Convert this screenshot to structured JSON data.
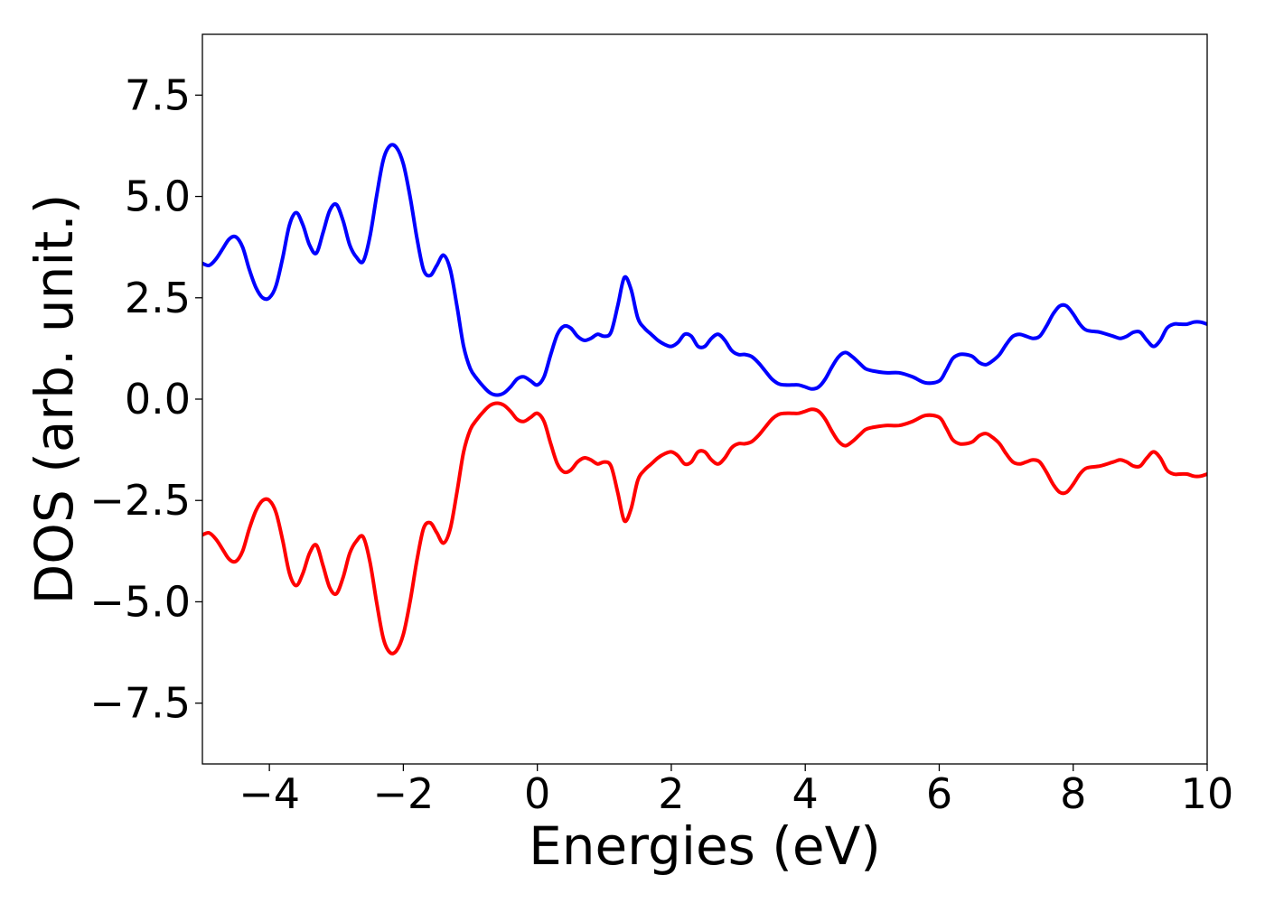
{
  "chart_data": {
    "type": "line",
    "title": "",
    "xlabel": "Energies (eV)",
    "ylabel": "DOS (arb. unit.)",
    "xlim": [
      -5,
      10
    ],
    "ylim": [
      -9,
      9
    ],
    "grid": false,
    "legend": "none",
    "xticks": [
      -4,
      -2,
      0,
      2,
      4,
      6,
      8,
      10
    ],
    "xtick_labels": [
      "−4",
      "−2",
      "0",
      "2",
      "4",
      "6",
      "8",
      "10"
    ],
    "yticks": [
      7.5,
      5.0,
      2.5,
      0.0,
      -2.5,
      -5.0,
      -7.5
    ],
    "ytick_labels": [
      "7.5",
      "5.0",
      "2.5",
      "0.0",
      "−2.5",
      "−5.0",
      "−7.5"
    ],
    "series": [
      {
        "color": "#0000ff",
        "x": [
          -5.0,
          -4.9,
          -4.8,
          -4.7,
          -4.6,
          -4.5,
          -4.4,
          -4.3,
          -4.2,
          -4.1,
          -4.0,
          -3.9,
          -3.8,
          -3.7,
          -3.6,
          -3.5,
          -3.4,
          -3.3,
          -3.2,
          -3.1,
          -3.0,
          -2.9,
          -2.8,
          -2.7,
          -2.6,
          -2.5,
          -2.4,
          -2.3,
          -2.2,
          -2.1,
          -2.0,
          -1.9,
          -1.8,
          -1.7,
          -1.6,
          -1.5,
          -1.4,
          -1.3,
          -1.2,
          -1.1,
          -1.0,
          -0.9,
          -0.8,
          -0.7,
          -0.6,
          -0.5,
          -0.4,
          -0.3,
          -0.2,
          -0.1,
          0.0,
          0.1,
          0.2,
          0.3,
          0.4,
          0.5,
          0.6,
          0.7,
          0.8,
          0.9,
          1.0,
          1.1,
          1.2,
          1.3,
          1.4,
          1.5,
          1.6,
          1.7,
          1.8,
          1.9,
          2.0,
          2.1,
          2.2,
          2.3,
          2.4,
          2.5,
          2.6,
          2.7,
          2.8,
          2.9,
          3.0,
          3.1,
          3.2,
          3.3,
          3.4,
          3.5,
          3.6,
          3.7,
          3.8,
          3.9,
          4.0,
          4.1,
          4.2,
          4.3,
          4.4,
          4.5,
          4.6,
          4.7,
          4.8,
          4.9,
          5.0,
          5.2,
          5.4,
          5.6,
          5.8,
          6.0,
          6.1,
          6.2,
          6.3,
          6.4,
          6.5,
          6.6,
          6.7,
          6.8,
          6.9,
          7.0,
          7.1,
          7.2,
          7.3,
          7.4,
          7.5,
          7.6,
          7.7,
          7.8,
          7.9,
          8.0,
          8.1,
          8.2,
          8.4,
          8.6,
          8.7,
          8.8,
          8.9,
          9.0,
          9.1,
          9.2,
          9.3,
          9.4,
          9.5,
          9.6,
          9.7,
          9.8,
          9.9,
          10.0
        ],
        "y": [
          3.35,
          3.3,
          3.45,
          3.7,
          3.95,
          4.0,
          3.75,
          3.2,
          2.75,
          2.5,
          2.5,
          2.8,
          3.5,
          4.3,
          4.6,
          4.3,
          3.8,
          3.6,
          4.1,
          4.65,
          4.8,
          4.4,
          3.8,
          3.5,
          3.4,
          4.0,
          5.0,
          5.9,
          6.25,
          6.2,
          5.8,
          5.0,
          4.0,
          3.2,
          3.05,
          3.3,
          3.55,
          3.2,
          2.3,
          1.3,
          0.75,
          0.5,
          0.3,
          0.15,
          0.1,
          0.15,
          0.3,
          0.5,
          0.55,
          0.45,
          0.35,
          0.55,
          1.1,
          1.6,
          1.8,
          1.75,
          1.55,
          1.45,
          1.5,
          1.6,
          1.55,
          1.65,
          2.3,
          3.0,
          2.7,
          2.0,
          1.75,
          1.6,
          1.45,
          1.35,
          1.3,
          1.4,
          1.6,
          1.55,
          1.3,
          1.3,
          1.5,
          1.6,
          1.45,
          1.2,
          1.1,
          1.1,
          1.05,
          0.9,
          0.7,
          0.5,
          0.38,
          0.35,
          0.35,
          0.35,
          0.3,
          0.25,
          0.3,
          0.5,
          0.8,
          1.05,
          1.15,
          1.05,
          0.9,
          0.75,
          0.7,
          0.65,
          0.65,
          0.55,
          0.4,
          0.45,
          0.7,
          1.0,
          1.1,
          1.1,
          1.05,
          0.9,
          0.85,
          0.95,
          1.1,
          1.35,
          1.55,
          1.6,
          1.55,
          1.5,
          1.55,
          1.8,
          2.1,
          2.3,
          2.3,
          2.1,
          1.85,
          1.7,
          1.65,
          1.55,
          1.5,
          1.55,
          1.65,
          1.65,
          1.45,
          1.3,
          1.45,
          1.75,
          1.85,
          1.85,
          1.85,
          1.9,
          1.9,
          1.85
        ]
      },
      {
        "color": "#ff0000",
        "x": [
          -5.0,
          -4.9,
          -4.8,
          -4.7,
          -4.6,
          -4.5,
          -4.4,
          -4.3,
          -4.2,
          -4.1,
          -4.0,
          -3.9,
          -3.8,
          -3.7,
          -3.6,
          -3.5,
          -3.4,
          -3.3,
          -3.2,
          -3.1,
          -3.0,
          -2.9,
          -2.8,
          -2.7,
          -2.6,
          -2.5,
          -2.4,
          -2.3,
          -2.2,
          -2.1,
          -2.0,
          -1.9,
          -1.8,
          -1.7,
          -1.6,
          -1.5,
          -1.4,
          -1.3,
          -1.2,
          -1.1,
          -1.0,
          -0.9,
          -0.8,
          -0.7,
          -0.6,
          -0.5,
          -0.4,
          -0.3,
          -0.2,
          -0.1,
          0.0,
          0.1,
          0.2,
          0.3,
          0.4,
          0.5,
          0.6,
          0.7,
          0.8,
          0.9,
          1.0,
          1.1,
          1.2,
          1.3,
          1.4,
          1.5,
          1.6,
          1.7,
          1.8,
          1.9,
          2.0,
          2.1,
          2.2,
          2.3,
          2.4,
          2.5,
          2.6,
          2.7,
          2.8,
          2.9,
          3.0,
          3.1,
          3.2,
          3.3,
          3.4,
          3.5,
          3.6,
          3.7,
          3.8,
          3.9,
          4.0,
          4.1,
          4.2,
          4.3,
          4.4,
          4.5,
          4.6,
          4.7,
          4.8,
          4.9,
          5.0,
          5.2,
          5.4,
          5.6,
          5.8,
          6.0,
          6.1,
          6.2,
          6.3,
          6.4,
          6.5,
          6.6,
          6.7,
          6.8,
          6.9,
          7.0,
          7.1,
          7.2,
          7.3,
          7.4,
          7.5,
          7.6,
          7.7,
          7.8,
          7.9,
          8.0,
          8.1,
          8.2,
          8.4,
          8.6,
          8.7,
          8.8,
          8.9,
          9.0,
          9.1,
          9.2,
          9.3,
          9.4,
          9.5,
          9.6,
          9.7,
          9.8,
          9.9,
          10.0
        ],
        "y": [
          -3.35,
          -3.3,
          -3.45,
          -3.7,
          -3.95,
          -4.0,
          -3.75,
          -3.2,
          -2.75,
          -2.5,
          -2.5,
          -2.8,
          -3.5,
          -4.3,
          -4.6,
          -4.3,
          -3.8,
          -3.6,
          -4.1,
          -4.65,
          -4.8,
          -4.4,
          -3.8,
          -3.5,
          -3.4,
          -4.0,
          -5.0,
          -5.9,
          -6.25,
          -6.2,
          -5.8,
          -5.0,
          -4.0,
          -3.2,
          -3.05,
          -3.3,
          -3.55,
          -3.2,
          -2.3,
          -1.3,
          -0.75,
          -0.5,
          -0.3,
          -0.15,
          -0.1,
          -0.15,
          -0.3,
          -0.5,
          -0.55,
          -0.45,
          -0.35,
          -0.55,
          -1.1,
          -1.6,
          -1.8,
          -1.75,
          -1.55,
          -1.45,
          -1.5,
          -1.6,
          -1.55,
          -1.65,
          -2.3,
          -3.0,
          -2.7,
          -2.0,
          -1.75,
          -1.6,
          -1.45,
          -1.35,
          -1.3,
          -1.4,
          -1.6,
          -1.55,
          -1.3,
          -1.3,
          -1.5,
          -1.6,
          -1.45,
          -1.2,
          -1.1,
          -1.1,
          -1.05,
          -0.9,
          -0.7,
          -0.5,
          -0.38,
          -0.35,
          -0.35,
          -0.35,
          -0.3,
          -0.25,
          -0.3,
          -0.5,
          -0.8,
          -1.05,
          -1.15,
          -1.05,
          -0.9,
          -0.75,
          -0.7,
          -0.65,
          -0.65,
          -0.55,
          -0.4,
          -0.45,
          -0.7,
          -1.0,
          -1.1,
          -1.1,
          -1.05,
          -0.9,
          -0.85,
          -0.95,
          -1.1,
          -1.35,
          -1.55,
          -1.6,
          -1.55,
          -1.5,
          -1.55,
          -1.8,
          -2.1,
          -2.3,
          -2.3,
          -2.1,
          -1.85,
          -1.7,
          -1.65,
          -1.55,
          -1.5,
          -1.55,
          -1.65,
          -1.65,
          -1.45,
          -1.3,
          -1.45,
          -1.75,
          -1.85,
          -1.85,
          -1.85,
          -1.9,
          -1.9,
          -1.85
        ]
      }
    ]
  }
}
